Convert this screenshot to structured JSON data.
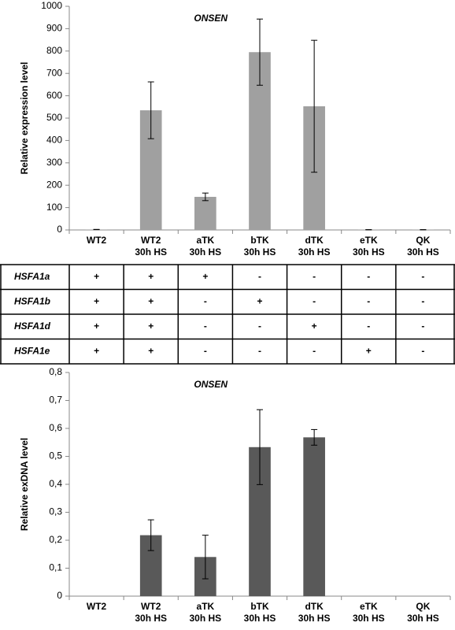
{
  "chart_data": [
    {
      "type": "bar",
      "title": "ONSEN",
      "y_label": "Relative expression level",
      "categories": [
        "WT2",
        "WT2\n30h HS",
        "aTK\n30h HS",
        "bTK\n30h HS",
        "dTK\n30h HS",
        "eTK\n30h HS",
        "QK\n30h HS"
      ],
      "values": [
        2,
        535,
        148,
        795,
        553,
        1,
        1
      ],
      "errors": [
        0.5,
        127,
        17,
        148,
        295,
        0.5,
        0.5
      ],
      "color": "#a0a0a0",
      "ylim": [
        0,
        1000
      ],
      "yticks": [
        0,
        100,
        200,
        300,
        400,
        500,
        600,
        700,
        800,
        900,
        1000
      ]
    },
    {
      "type": "bar",
      "title": "ONSEN",
      "y_label": "Relative exDNA level",
      "categories": [
        "WT2",
        "WT2\n30h HS",
        "aTK\n30h HS",
        "bTK\n30h HS",
        "dTK\n30h HS",
        "eTK\n30h HS",
        "QK\n30h HS"
      ],
      "values": [
        0,
        0.218,
        0.14,
        0.533,
        0.568,
        0,
        0
      ],
      "errors": [
        0,
        0.055,
        0.078,
        0.134,
        0.028,
        0,
        0
      ],
      "color": "#595959",
      "ylim": [
        0,
        0.8
      ],
      "yticks": [
        0,
        {
          "value": 0.1,
          "label": "0,1"
        },
        {
          "value": 0.2,
          "label": "0,2"
        },
        {
          "value": 0.3,
          "label": "0,3"
        },
        {
          "value": 0.4,
          "label": "0,4"
        },
        {
          "value": 0.5,
          "label": "0,5"
        },
        {
          "value": 0.6,
          "label": "0,6"
        },
        {
          "value": 0.7,
          "label": "0,7"
        },
        {
          "value": 0.8,
          "label": "0,8"
        }
      ]
    }
  ],
  "table": {
    "rows": [
      [
        "HSFA1a",
        "+",
        "+",
        "+",
        "-",
        "-",
        "-",
        "-"
      ],
      [
        "HSFA1b",
        "+",
        "+",
        "-",
        "+",
        "-",
        "-",
        "-"
      ],
      [
        "HSFA1d",
        "+",
        "+",
        "-",
        "-",
        "+",
        "-",
        "-"
      ],
      [
        "HSFA1e",
        "+",
        "+",
        "-",
        "-",
        "-",
        "+",
        "-"
      ]
    ]
  }
}
